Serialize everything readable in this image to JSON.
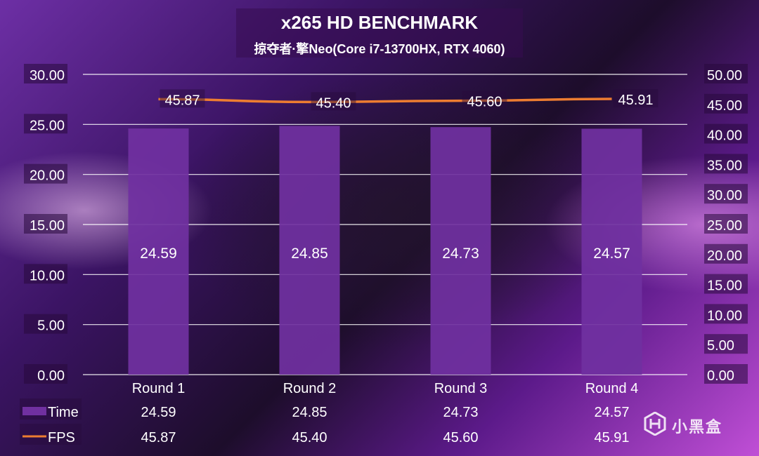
{
  "header": {
    "title": "x265 HD BENCHMARK",
    "subtitle": "掠夺者·擎Neo(Core i7-13700HX, RTX 4060)"
  },
  "watermark": {
    "brand": "小黑盒"
  },
  "colors": {
    "bar": "#7030a0",
    "line": "#ed7d31",
    "grid": "#ffffff",
    "text": "#ffffff"
  },
  "chart_data": {
    "type": "bar",
    "title": "x265 HD BENCHMARK",
    "subtitle": "掠夺者·擎Neo(Core i7-13700HX, RTX 4060)",
    "categories": [
      "Round 1",
      "Round 2",
      "Round 3",
      "Round 4"
    ],
    "series": [
      {
        "name": "Time",
        "type": "bar",
        "axis": "left",
        "values": [
          24.59,
          24.85,
          24.73,
          24.57
        ],
        "labels": [
          "24.59",
          "24.85",
          "24.73",
          "24.57"
        ]
      },
      {
        "name": "FPS",
        "type": "line",
        "axis": "right",
        "values": [
          45.87,
          45.4,
          45.6,
          45.91
        ],
        "labels": [
          "45.87",
          "45.40",
          "45.60",
          "45.91"
        ]
      }
    ],
    "left_axis": {
      "ylim": [
        0,
        30
      ],
      "ticks": [
        "0.00",
        "5.00",
        "10.00",
        "15.00",
        "20.00",
        "25.00",
        "30.00"
      ]
    },
    "right_axis": {
      "ylim": [
        0,
        50
      ],
      "ticks": [
        "0.00",
        "5.00",
        "10.00",
        "15.00",
        "20.00",
        "25.00",
        "30.00",
        "35.00",
        "40.00",
        "45.00",
        "50.00"
      ]
    },
    "grid": true,
    "data_table": true
  }
}
